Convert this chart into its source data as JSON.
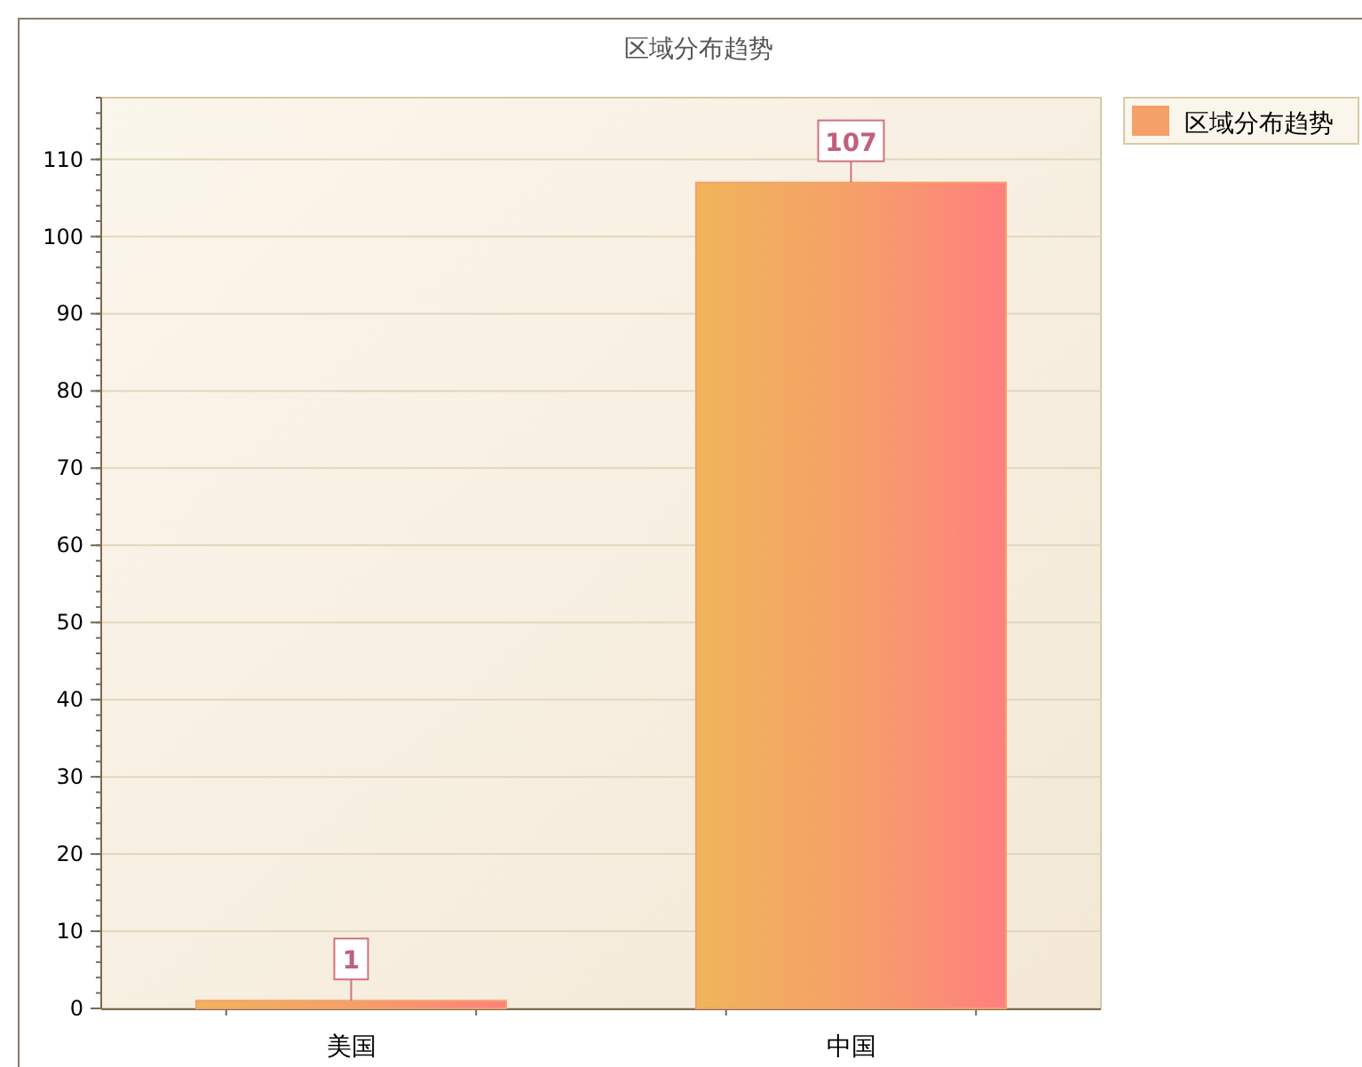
{
  "chart_data": {
    "type": "bar",
    "title": "区域分布趋势",
    "categories": [
      "美国",
      "中国"
    ],
    "series": [
      {
        "name": "区域分布趋势",
        "color": "#f5a068",
        "values": [
          1,
          107
        ]
      }
    ],
    "ylim": [
      0,
      118
    ],
    "yticks": [
      0,
      10,
      20,
      30,
      40,
      50,
      60,
      70,
      80,
      90,
      100,
      110
    ],
    "grid": "y",
    "legend": "top right",
    "data_labels": true
  }
}
